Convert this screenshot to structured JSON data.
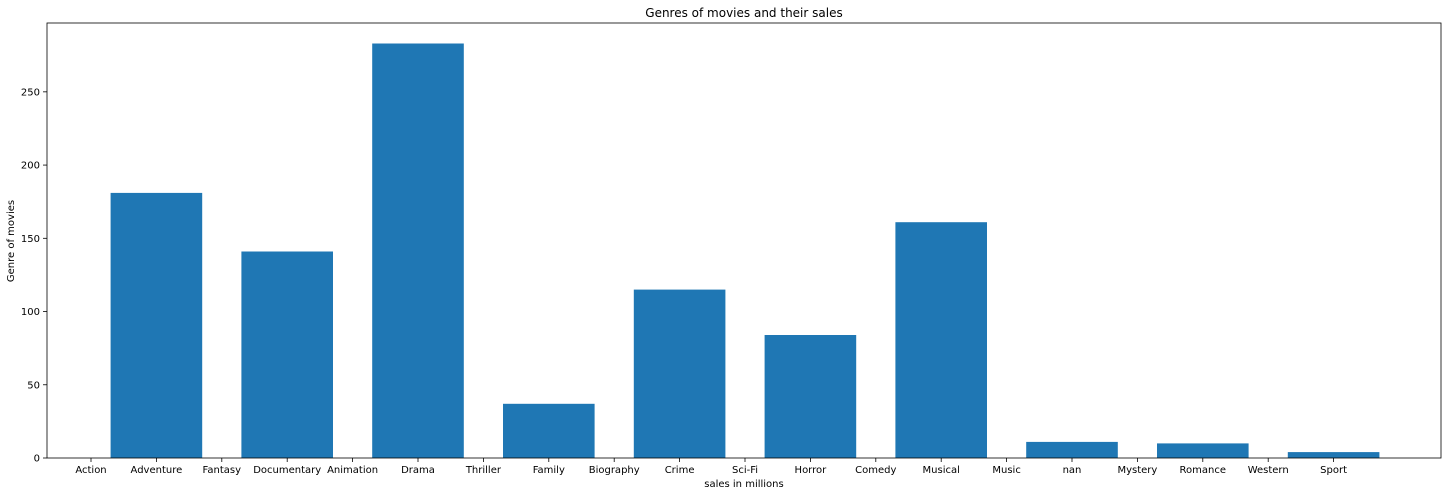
{
  "chart_data": {
    "type": "bar",
    "title": "Genres of movies and their sales",
    "xlabel": "sales in millions",
    "ylabel": "Genre of movies",
    "categories": [
      "Action",
      "Adventure",
      "Fantasy",
      "Documentary",
      "Animation",
      "Drama",
      "Thriller",
      "Family",
      "Biography",
      "Crime",
      "Sci-Fi",
      "Horror",
      "Comedy",
      "Musical",
      "Music",
      "nan",
      "Mystery",
      "Romance",
      "Western",
      "Sport"
    ],
    "bars": [
      {
        "from": "Action",
        "to": "Adventure",
        "value": 181
      },
      {
        "from": "Fantasy",
        "to": "Documentary",
        "value": 141
      },
      {
        "from": "Animation",
        "to": "Drama",
        "value": 283
      },
      {
        "from": "Thriller",
        "to": "Family",
        "value": 37
      },
      {
        "from": "Biography",
        "to": "Crime",
        "value": 115
      },
      {
        "from": "Sci-Fi",
        "to": "Horror",
        "value": 84
      },
      {
        "from": "Comedy",
        "to": "Musical",
        "value": 161
      },
      {
        "from": "Music",
        "to": "nan",
        "value": 11
      },
      {
        "from": "Mystery",
        "to": "Romance",
        "value": 10
      },
      {
        "from": "Western",
        "to": "Sport",
        "value": 4
      }
    ],
    "yticks": [
      0,
      50,
      100,
      150,
      200,
      250
    ],
    "ylim": [
      0,
      297
    ],
    "bar_color": "#1f77b4",
    "grid": false,
    "legend": "none"
  }
}
